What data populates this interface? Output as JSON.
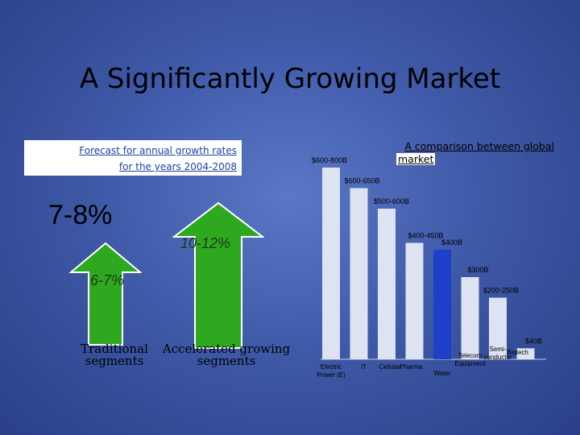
{
  "slide": {
    "title": "A Significantly Growing Market",
    "forecast": {
      "line1": "Forecast for annual growth rates",
      "line2": "for the years 2004-2008"
    },
    "rate_main": "7-8%",
    "traditional": {
      "rate": "6-7%",
      "label": "Traditional\nsegments"
    },
    "accelerated": {
      "rate": "10-12%",
      "label": "Accelerated growing\nsegments"
    },
    "comparison_title_line1": "A comparison between global",
    "comparison_title_line2": "market",
    "colors": {
      "arrow": "#2ea81e",
      "bar": "#dde3f0",
      "highlight_bar": "#1e3fc8"
    }
  },
  "chart_data": {
    "type": "bar",
    "title": "A comparison between global market",
    "categories": [
      "Electric Power (E)",
      "IT",
      "Cellular",
      "Pharma",
      "Water",
      "Telecom Equipment",
      "Semiconductor",
      "Biotech"
    ],
    "values": [
      700,
      625,
      550,
      425,
      400,
      300,
      225,
      40
    ],
    "value_labels": [
      "$600-800B",
      "$600-650B",
      "$500-600B",
      "$400-450B",
      "$400B",
      "$300B",
      "$200-250B",
      "$40B"
    ],
    "highlighted_category": "Water",
    "ylim": [
      0,
      700
    ]
  }
}
